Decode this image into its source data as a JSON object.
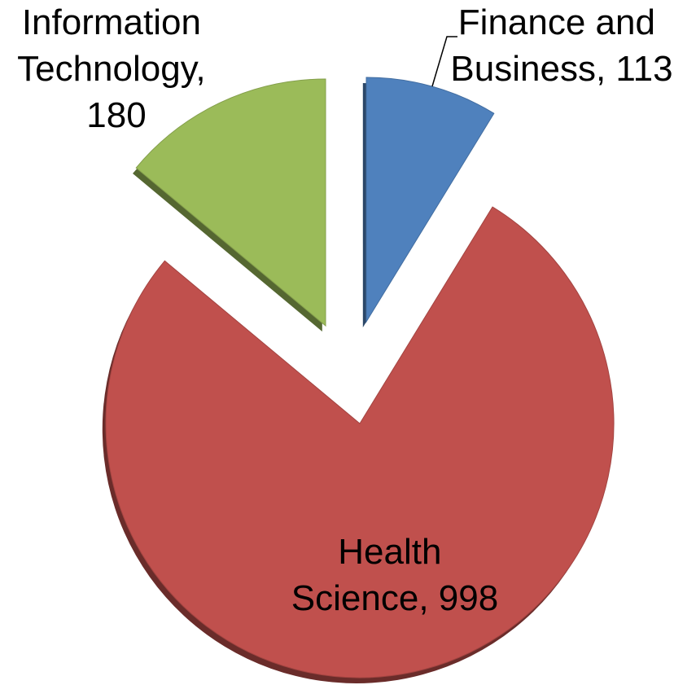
{
  "chart_data": {
    "type": "pie",
    "values": [
      113,
      998,
      180
    ],
    "value_labels": [
      "Finance and Business, 113",
      "Health Science, 998",
      "Information Technology, 180"
    ],
    "colors": [
      "#4f81bd",
      "#c0504d",
      "#9bbb59"
    ],
    "start_angle": 0,
    "direction": "clockwise"
  }
}
